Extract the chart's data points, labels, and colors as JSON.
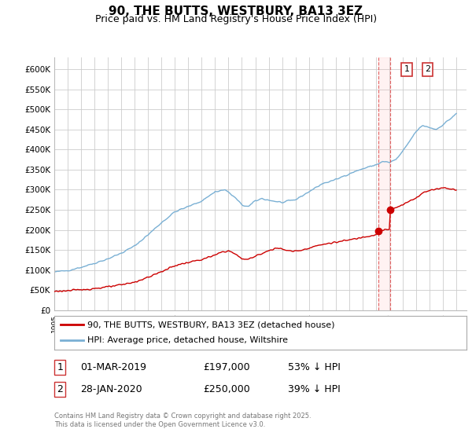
{
  "title": "90, THE BUTTS, WESTBURY, BA13 3EZ",
  "subtitle": "Price paid vs. HM Land Registry's House Price Index (HPI)",
  "title_fontsize": 11,
  "subtitle_fontsize": 9,
  "ylim": [
    0,
    630000
  ],
  "yticks": [
    0,
    50000,
    100000,
    150000,
    200000,
    250000,
    300000,
    350000,
    400000,
    450000,
    500000,
    550000,
    600000
  ],
  "ytick_labels": [
    "£0",
    "£50K",
    "£100K",
    "£150K",
    "£200K",
    "£250K",
    "£300K",
    "£350K",
    "£400K",
    "£450K",
    "£500K",
    "£550K",
    "£600K"
  ],
  "xlim_start": 1995.0,
  "xlim_end": 2025.75,
  "background_color": "#ffffff",
  "grid_color": "#cccccc",
  "red_line_color": "#cc0000",
  "blue_line_color": "#7ab0d4",
  "marker1_date": 2019.17,
  "marker1_value": 197000,
  "marker2_date": 2020.08,
  "marker2_value": 250000,
  "vline_color": "#dd4444",
  "legend_line1": "90, THE BUTTS, WESTBURY, BA13 3EZ (detached house)",
  "legend_line2": "HPI: Average price, detached house, Wiltshire",
  "table_rows": [
    {
      "num": "1",
      "date": "01-MAR-2019",
      "price": "£197,000",
      "hpi": "53% ↓ HPI"
    },
    {
      "num": "2",
      "date": "28-JAN-2020",
      "price": "£250,000",
      "hpi": "39% ↓ HPI"
    }
  ],
  "footnote": "Contains HM Land Registry data © Crown copyright and database right 2025.\nThis data is licensed under the Open Government Licence v3.0."
}
